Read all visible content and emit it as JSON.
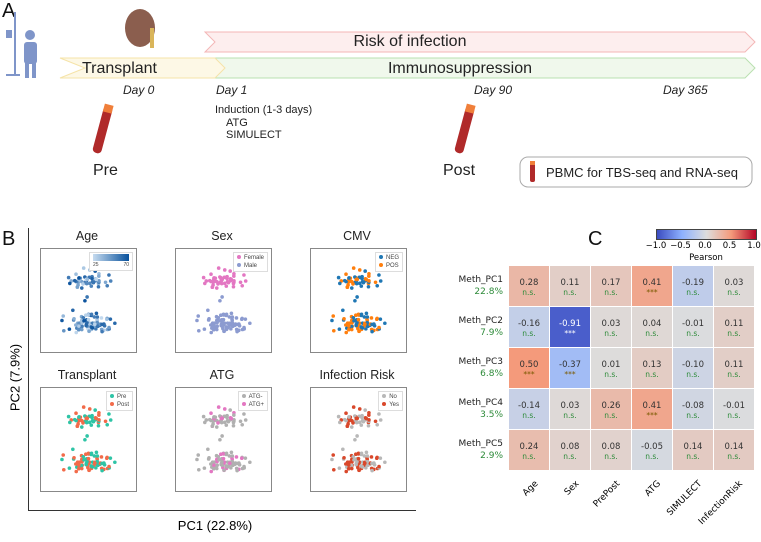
{
  "panel_a": {
    "label": "A",
    "risk_label": "Risk of infection",
    "transplant_label": "Transplant",
    "immuno_label": "Immunosuppression",
    "days": [
      "Day 0",
      "Day 1",
      "Day 90",
      "Day 365"
    ],
    "induction_title": "Induction (1-3 days)",
    "induction_items": [
      "ATG",
      "SIMULECT"
    ],
    "pre_label": "Pre",
    "post_label": "Post",
    "pbmc_label": "PBMC for TBS-seq and RNA-seq",
    "colors": {
      "risk": "#f4b6b6",
      "transplant": "#f5e3a8",
      "immuno": "#b9e0b0"
    }
  },
  "panel_b": {
    "label": "B",
    "xlabel": "PC1 (22.8%)",
    "ylabel": "PC2 (7.9%)"
  },
  "panel_c": {
    "label": "C",
    "colorbar_label": "Pearson",
    "colorbar_ticks": [
      "−1.0",
      "−0.5",
      "0.0",
      "0.5",
      "1.0"
    ]
  },
  "chart_data": [
    {
      "type": "scatter",
      "xlabel": "PC1 (22.8%)",
      "ylabel": "PC2 (7.9%)",
      "grid": false,
      "panels": [
        {
          "title": "Age",
          "legend": [
            "25",
            "70"
          ],
          "colormap": [
            "#c6dbef",
            "#08519c"
          ],
          "legend_placement": "top-right"
        },
        {
          "title": "Sex",
          "legend": [
            "Female",
            "Male"
          ],
          "colors": [
            "#e377c2",
            "#8c9bd0"
          ],
          "legend_placement": "top-right"
        },
        {
          "title": "CMV",
          "legend": [
            "NEG",
            "POS"
          ],
          "colors": [
            "#1f77b4",
            "#ff7f0e"
          ],
          "legend_placement": "top-right"
        },
        {
          "title": "Transplant",
          "legend": [
            "Pre",
            "Post"
          ],
          "colors": [
            "#2ec4a6",
            "#f26b4a"
          ],
          "legend_placement": "top-right"
        },
        {
          "title": "ATG",
          "legend": [
            "ATG-",
            "ATG+"
          ],
          "colors": [
            "#b0b0b0",
            "#e377c2"
          ],
          "legend_placement": "top-right"
        },
        {
          "title": "Infection Risk",
          "legend": [
            "No",
            "Yes"
          ],
          "colors": [
            "#b8b8b8",
            "#d9482b"
          ],
          "legend_placement": "top-right"
        }
      ]
    },
    {
      "type": "heatmap",
      "rows": [
        "Meth_PC1",
        "Meth_PC2",
        "Meth_PC3",
        "Meth_PC4",
        "Meth_PC5"
      ],
      "row_sublabels": [
        "22.8%",
        "7.9%",
        "6.8%",
        "3.5%",
        "2.9%"
      ],
      "columns": [
        "Age",
        "Sex",
        "PrePost",
        "ATG",
        "SIMULECT",
        "InfectionRisk"
      ],
      "values": [
        [
          0.28,
          0.11,
          0.17,
          0.41,
          -0.19,
          0.03
        ],
        [
          -0.16,
          -0.91,
          0.03,
          0.04,
          -0.01,
          0.11
        ],
        [
          0.5,
          -0.37,
          0.01,
          0.13,
          -0.1,
          0.11
        ],
        [
          -0.14,
          0.03,
          0.26,
          0.41,
          -0.08,
          -0.01
        ],
        [
          0.24,
          0.08,
          0.08,
          -0.05,
          0.14,
          0.14
        ]
      ],
      "significance": [
        [
          "n.s.",
          "n.s.",
          "n.s.",
          "***",
          "n.s.",
          "n.s."
        ],
        [
          "n.s.",
          "***",
          "n.s.",
          "n.s.",
          "n.s.",
          "n.s."
        ],
        [
          "***",
          "***",
          "n.s.",
          "n.s.",
          "n.s.",
          "n.s."
        ],
        [
          "n.s.",
          "n.s.",
          "n.s.",
          "***",
          "n.s.",
          "n.s."
        ],
        [
          "n.s.",
          "n.s.",
          "n.s.",
          "n.s.",
          "n.s.",
          "n.s."
        ]
      ],
      "colorbar": {
        "label": "Pearson",
        "range": [
          -1.0,
          1.0
        ],
        "colormap": "coolwarm"
      }
    }
  ]
}
